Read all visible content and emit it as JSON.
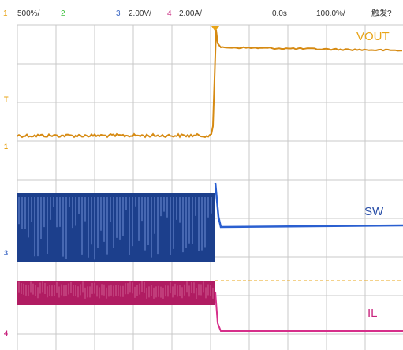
{
  "header": {
    "ch1": {
      "num": "1",
      "scale": "500%/",
      "color": "#e8a417"
    },
    "ch2": {
      "num": "2",
      "color": "#3ec03e"
    },
    "ch3": {
      "num": "3",
      "scale": "2.00V/",
      "color": "#3a66c4"
    },
    "ch4": {
      "num": "4",
      "scale": "2.00A/",
      "color": "#c8247d"
    },
    "time_offset": "0.0s",
    "time_scale": "100.0%/",
    "trigger": "触发?"
  },
  "labels": {
    "vout": "VOUT",
    "sw": "SW",
    "il": "IL"
  },
  "markers": {
    "m1": "1",
    "mt": "T",
    "m3": "3",
    "m4": "4"
  },
  "colors": {
    "vout": "#d68a12",
    "sw": "#1c3f8c",
    "sw_light": "#6f8fd6",
    "il": "#b01c62",
    "grid": "#c8c8c8"
  }
}
